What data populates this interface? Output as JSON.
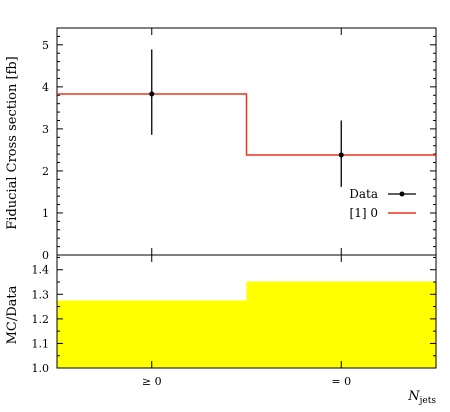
{
  "chart_data": [
    {
      "type": "step",
      "panel": "main",
      "ylabel": "Fiducial Cross section [fb]",
      "ylim": [
        0,
        5.4
      ],
      "yticks": [
        0,
        1,
        2,
        3,
        4,
        5
      ],
      "ytick_labels": [
        "0",
        "1",
        "2",
        "3",
        "4",
        "5"
      ],
      "categories": [
        "≥ 0",
        "= 0"
      ],
      "series": [
        {
          "name": "Data",
          "style": "points-with-errorbars",
          "color": "#000000",
          "values": [
            3.83,
            2.38
          ],
          "err_low": [
            0.97,
            0.76
          ],
          "err_high": [
            1.06,
            0.82
          ]
        },
        {
          "name": "[1] 0",
          "style": "step-line",
          "color": "#e8341c",
          "values": [
            3.83,
            2.38
          ]
        }
      ],
      "legend_position": "right"
    },
    {
      "type": "step-band",
      "panel": "ratio",
      "ylabel": "MC/Data",
      "xlabel_var": "N",
      "xlabel_sub": "jets",
      "ylim": [
        1.0,
        1.46
      ],
      "yticks": [
        1.0,
        1.1,
        1.2,
        1.3,
        1.4
      ],
      "ytick_labels": [
        "1.0",
        "1.1",
        "1.2",
        "1.3",
        "1.4"
      ],
      "categories": [
        "≥ 0",
        "= 0"
      ],
      "band": {
        "color": "#ffff00",
        "low": [
          1.0,
          1.0
        ],
        "high": [
          1.275,
          1.352
        ]
      }
    }
  ]
}
